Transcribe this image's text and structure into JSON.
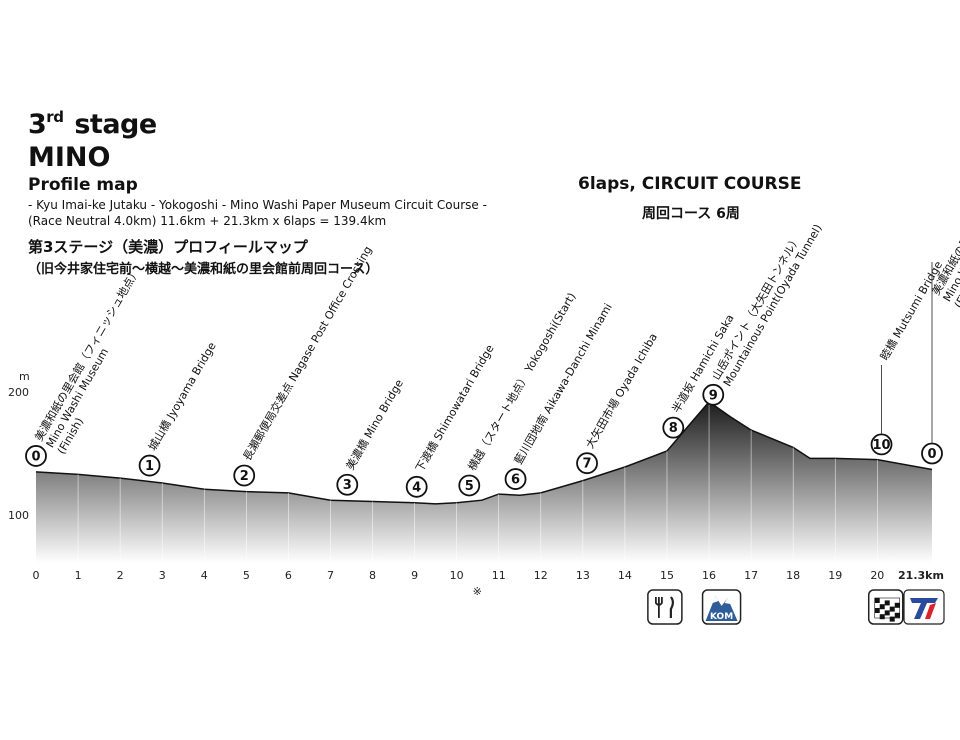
{
  "header": {
    "stage_num": "3",
    "stage_sup": "rd",
    "stage_word": "stage",
    "stage_name": "MINO",
    "subtitle": "Profile map",
    "route_line1": "- Kyu Imai-ke Jutaku - Yokogoshi - Mino Washi Paper Museum Circuit Course -",
    "route_line2": "(Race Neutral 4.0km) 11.6km + 21.3km x 6laps = 139.4km",
    "jp_title": "第3ステージ（美濃）プロフィールマップ",
    "jp_route": "（旧今井家住宅前〜横越〜美濃和紙の里会館前周回コース）",
    "circuit_en": "6laps, CIRCUIT COURSE",
    "circuit_jp": "周回コース 6周"
  },
  "chart_data": {
    "type": "area",
    "xlabel": "",
    "ylabel": "m",
    "x_unit_label": "21.3km",
    "xlim": [
      0,
      21.3
    ],
    "ylim": [
      60,
      200
    ],
    "y_ticks": [
      100,
      200
    ],
    "x_ticks": [
      "0",
      "1",
      "2",
      "3",
      "4",
      "5",
      "6",
      "7",
      "8",
      "9",
      "10",
      "11",
      "12",
      "13",
      "14",
      "15",
      "16",
      "17",
      "18",
      "19",
      "20",
      "21.3km"
    ],
    "footnote_mark": "※",
    "footnote_x": 10.3,
    "grid_x": true,
    "profile": [
      [
        0,
        135
      ],
      [
        1,
        133
      ],
      [
        2,
        130
      ],
      [
        3,
        126
      ],
      [
        4,
        121
      ],
      [
        5,
        119
      ],
      [
        6,
        118
      ],
      [
        7,
        112
      ],
      [
        8,
        111
      ],
      [
        9,
        110
      ],
      [
        9.5,
        109
      ],
      [
        10,
        110
      ],
      [
        10.6,
        112
      ],
      [
        11,
        117
      ],
      [
        11.5,
        116
      ],
      [
        12,
        118
      ],
      [
        13,
        128
      ],
      [
        14,
        139
      ],
      [
        15,
        152
      ],
      [
        15.6,
        176
      ],
      [
        16,
        192
      ],
      [
        16.5,
        180
      ],
      [
        17,
        169
      ],
      [
        18,
        155
      ],
      [
        18.4,
        146
      ],
      [
        19,
        146
      ],
      [
        20,
        145
      ],
      [
        21.3,
        137
      ]
    ],
    "points": [
      {
        "num": "0",
        "x": 0,
        "label_en": "Mino Washi Museum",
        "label_en2": "(Finish)",
        "label_jp": "美濃和紙の里会館",
        "label_jp2": "（フィニッシュ地点）"
      },
      {
        "num": "1",
        "x": 2.7,
        "label_en": "Jyoyama Bridge",
        "label_jp": "城山橋"
      },
      {
        "num": "2",
        "x": 4.95,
        "label_en": "Nagase Post Office Crossing",
        "label_jp": "長瀬郵便局交差点"
      },
      {
        "num": "3",
        "x": 7.4,
        "label_en": "Mino Bridge",
        "label_jp": "美濃橋"
      },
      {
        "num": "4",
        "x": 9.05,
        "label_en": "Shimowatari Bridge",
        "label_jp": "下渡橋"
      },
      {
        "num": "5",
        "x": 10.3,
        "label_en": "Yokogoshi(Start)",
        "label_jp": "横越（スタート地点）"
      },
      {
        "num": "6",
        "x": 11.4,
        "label_en": "Aikawa-Danchi Minami",
        "label_jp": "藍川団地南"
      },
      {
        "num": "7",
        "x": 13.1,
        "label_en": "Oyada Ichiba",
        "label_jp": "大矢田市場"
      },
      {
        "num": "8",
        "x": 15.15,
        "label_en": "Hamichi Saka",
        "label_jp": "半道坂"
      },
      {
        "num": "9",
        "x": 16.1,
        "label_en": "Mountainous Point(Oyada Tunnel)",
        "label_jp": "山岳ポイント（大矢田トンネル）"
      },
      {
        "num": "10",
        "x": 20.1,
        "label_en": "Mutsumi Bridge",
        "label_jp": "睦橋"
      },
      {
        "num": "0",
        "x": 21.3,
        "label_en": "Mino Washi Museum",
        "label_en2": "(Finish)",
        "label_jp": "美濃和紙の里会館",
        "label_jp2": "（フィニッシュ地点）"
      }
    ],
    "icons": [
      {
        "name": "feed-zone-icon",
        "x": 14.95
      },
      {
        "name": "kom-icon",
        "x": 16.25,
        "text": "KOM"
      },
      {
        "name": "finish-flag-icon",
        "x": 20.2
      },
      {
        "name": "tour-logo-icon",
        "x": 21.35
      }
    ]
  },
  "colors": {
    "area_top": "#1c1c1c",
    "area_bottom": "#ffffff",
    "line": "#111111",
    "logo_blue": "#2a4a9e",
    "logo_red": "#d8232a",
    "kom_blue": "#2f5d9a"
  }
}
